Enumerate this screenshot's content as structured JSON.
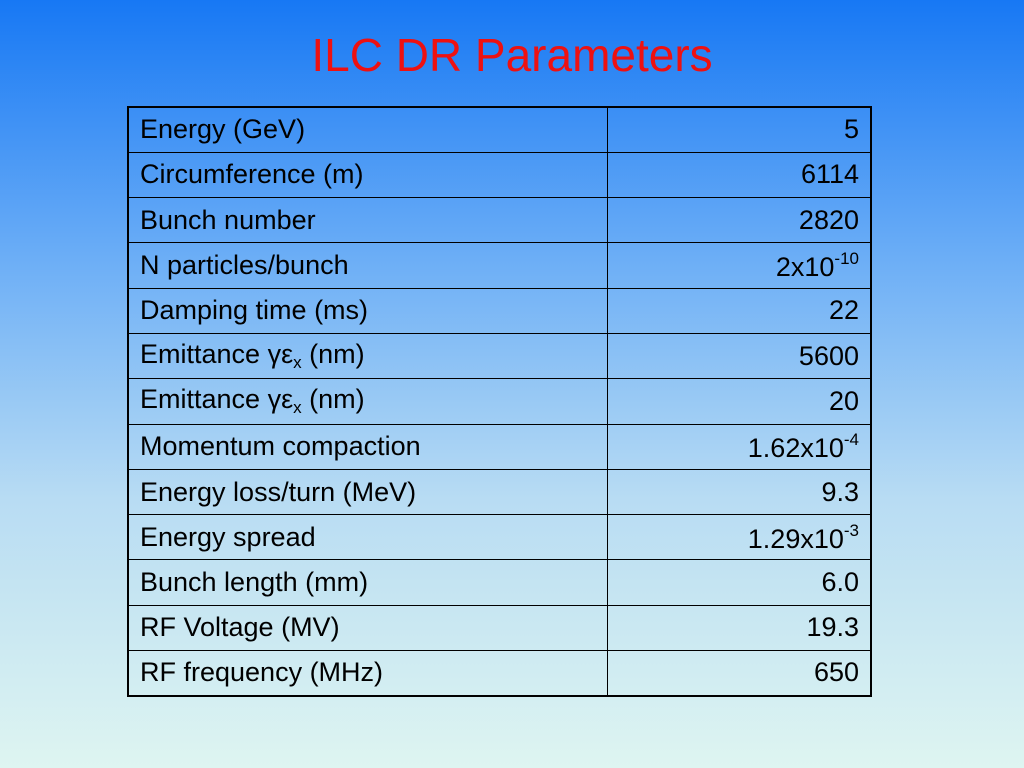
{
  "title": "ILC DR Parameters",
  "table": {
    "rows": [
      {
        "label": "Energy (GeV)",
        "value": "5"
      },
      {
        "label": "Circumference (m)",
        "value": "6114"
      },
      {
        "label": "Bunch number",
        "value": "2820"
      },
      {
        "label": "N particles/bunch",
        "value": [
          "2x10",
          {
            "sup": "-10"
          }
        ]
      },
      {
        "label": "Damping time (ms)",
        "value": "22"
      },
      {
        "label": [
          "Emittance ",
          "γε",
          {
            "sub": "x"
          },
          " (nm)"
        ],
        "value": "5600"
      },
      {
        "label": [
          "Emittance ",
          "γε",
          {
            "sub": "x"
          },
          " (nm)"
        ],
        "value": "20"
      },
      {
        "label": "Momentum compaction",
        "value": [
          "1.62x10",
          {
            "sup": "-4"
          }
        ]
      },
      {
        "label": "Energy loss/turn (MeV)",
        "value": "9.3"
      },
      {
        "label": "Energy spread",
        "value": [
          "1.29x10",
          {
            "sup": "-3"
          }
        ]
      },
      {
        "label": "Bunch length (mm)",
        "value": "6.0"
      },
      {
        "label": "RF Voltage (MV)",
        "value": "19.3"
      },
      {
        "label": "RF frequency (MHz)",
        "value": "650"
      }
    ]
  }
}
